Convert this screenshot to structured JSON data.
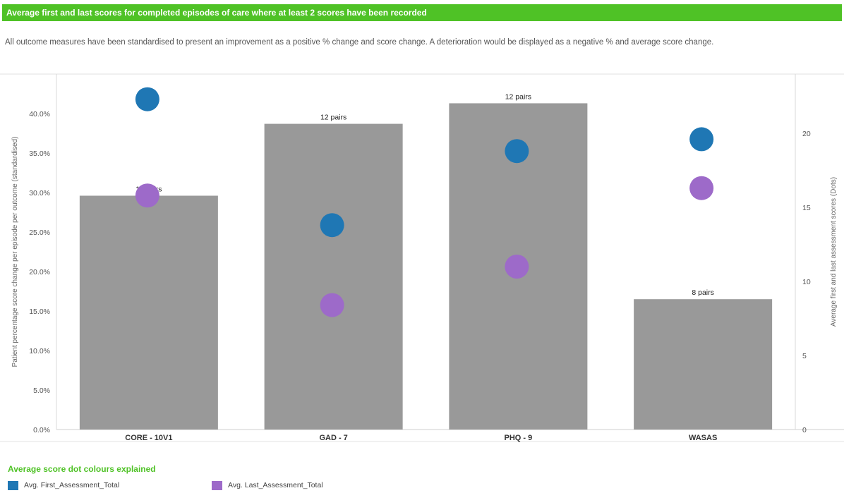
{
  "title": "Average first and last scores for completed episodes of care where at least 2 scores have been recorded",
  "description": "All outcome measures have been standardised to present an improvement as a positive % change and score change. A deterioration would be displayed as a negative % and average score change.",
  "legend": {
    "title": "Average score dot colours explained",
    "items": [
      {
        "label": "Avg. First_Assessment_Total",
        "color": "#1f77b4"
      },
      {
        "label": "Avg. Last_Assessment_Total",
        "color": "#9d6ac9"
      }
    ]
  },
  "chart_data": {
    "type": "bar",
    "categories": [
      "CORE - 10V1",
      "GAD - 7",
      "PHQ - 9",
      "WASAS"
    ],
    "bar_series": {
      "values": [
        29.6,
        38.7,
        41.3,
        16.5
      ],
      "labels": [
        "12 pairs",
        "12 pairs",
        "12 pairs",
        "8 pairs"
      ],
      "color": "#999999"
    },
    "dot_series": [
      {
        "name": "Avg. First_Assessment_Total",
        "color": "#1f77b4",
        "values": [
          22.3,
          13.8,
          18.8,
          19.6
        ]
      },
      {
        "name": "Avg. Last_Assessment_Total",
        "color": "#9d6ac9",
        "values": [
          15.8,
          8.4,
          11.0,
          16.3
        ]
      }
    ],
    "ylabel_left": "Patient percentage score change per episode per outcome (standardised)",
    "ylabel_right": "Average first and last assessment scores (Dots)",
    "ylim_left": [
      0,
      45
    ],
    "ylim_right": [
      0,
      24
    ],
    "yticks_left": [
      "0.0%",
      "5.0%",
      "10.0%",
      "15.0%",
      "20.0%",
      "25.0%",
      "30.0%",
      "35.0%",
      "40.0%"
    ],
    "yticks_right": [
      "0",
      "5",
      "10",
      "15",
      "20"
    ]
  }
}
